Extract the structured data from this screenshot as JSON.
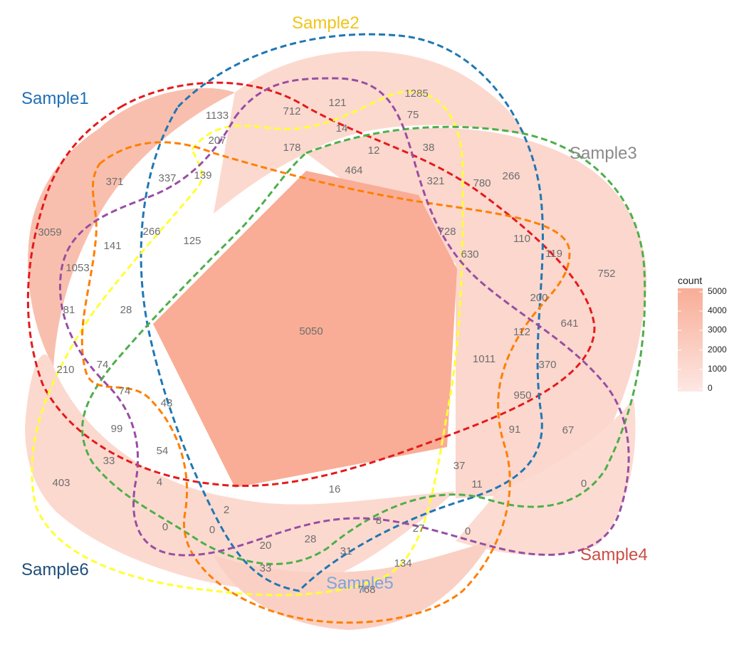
{
  "diagram": {
    "type": "venn-6-set",
    "sets": [
      {
        "name": "Sample1",
        "color": "#1f6fb4"
      },
      {
        "name": "Sample2",
        "color": "#f0c419"
      },
      {
        "name": "Sample3",
        "color": "#8a8a8a"
      },
      {
        "name": "Sample4",
        "color": "#c94f45"
      },
      {
        "name": "Sample5",
        "color": "#7aa6d8"
      },
      {
        "name": "Sample6",
        "color": "#1f4e79"
      }
    ],
    "border_colors": [
      "#e41a1c",
      "#1f77b4",
      "#ffff33",
      "#4daf4a",
      "#ff7f00",
      "#984ea3"
    ],
    "fill_low": "#fde7e3",
    "fill_high": "#f8ad96",
    "counts": [
      "5050",
      "1285",
      "1133",
      "712",
      "121",
      "75",
      "14",
      "207",
      "178",
      "12",
      "38",
      "464",
      "321",
      "780",
      "266",
      "371",
      "337",
      "139",
      "3059",
      "141",
      "266",
      "125",
      "728",
      "110",
      "630",
      "119",
      "752",
      "1053",
      "200",
      "81",
      "28",
      "112",
      "641",
      "1011",
      "210",
      "74",
      "370",
      "74",
      "950",
      "43",
      "99",
      "91",
      "67",
      "54",
      "33",
      "37",
      "403",
      "4",
      "16",
      "11",
      "0",
      "2",
      "8",
      "27",
      "0",
      "0",
      "0",
      "20",
      "28",
      "31",
      "134",
      "33",
      "768"
    ],
    "legend": {
      "title": "count",
      "ticks": [
        "5000",
        "4000",
        "3000",
        "2000",
        "1000",
        "0"
      ]
    }
  }
}
